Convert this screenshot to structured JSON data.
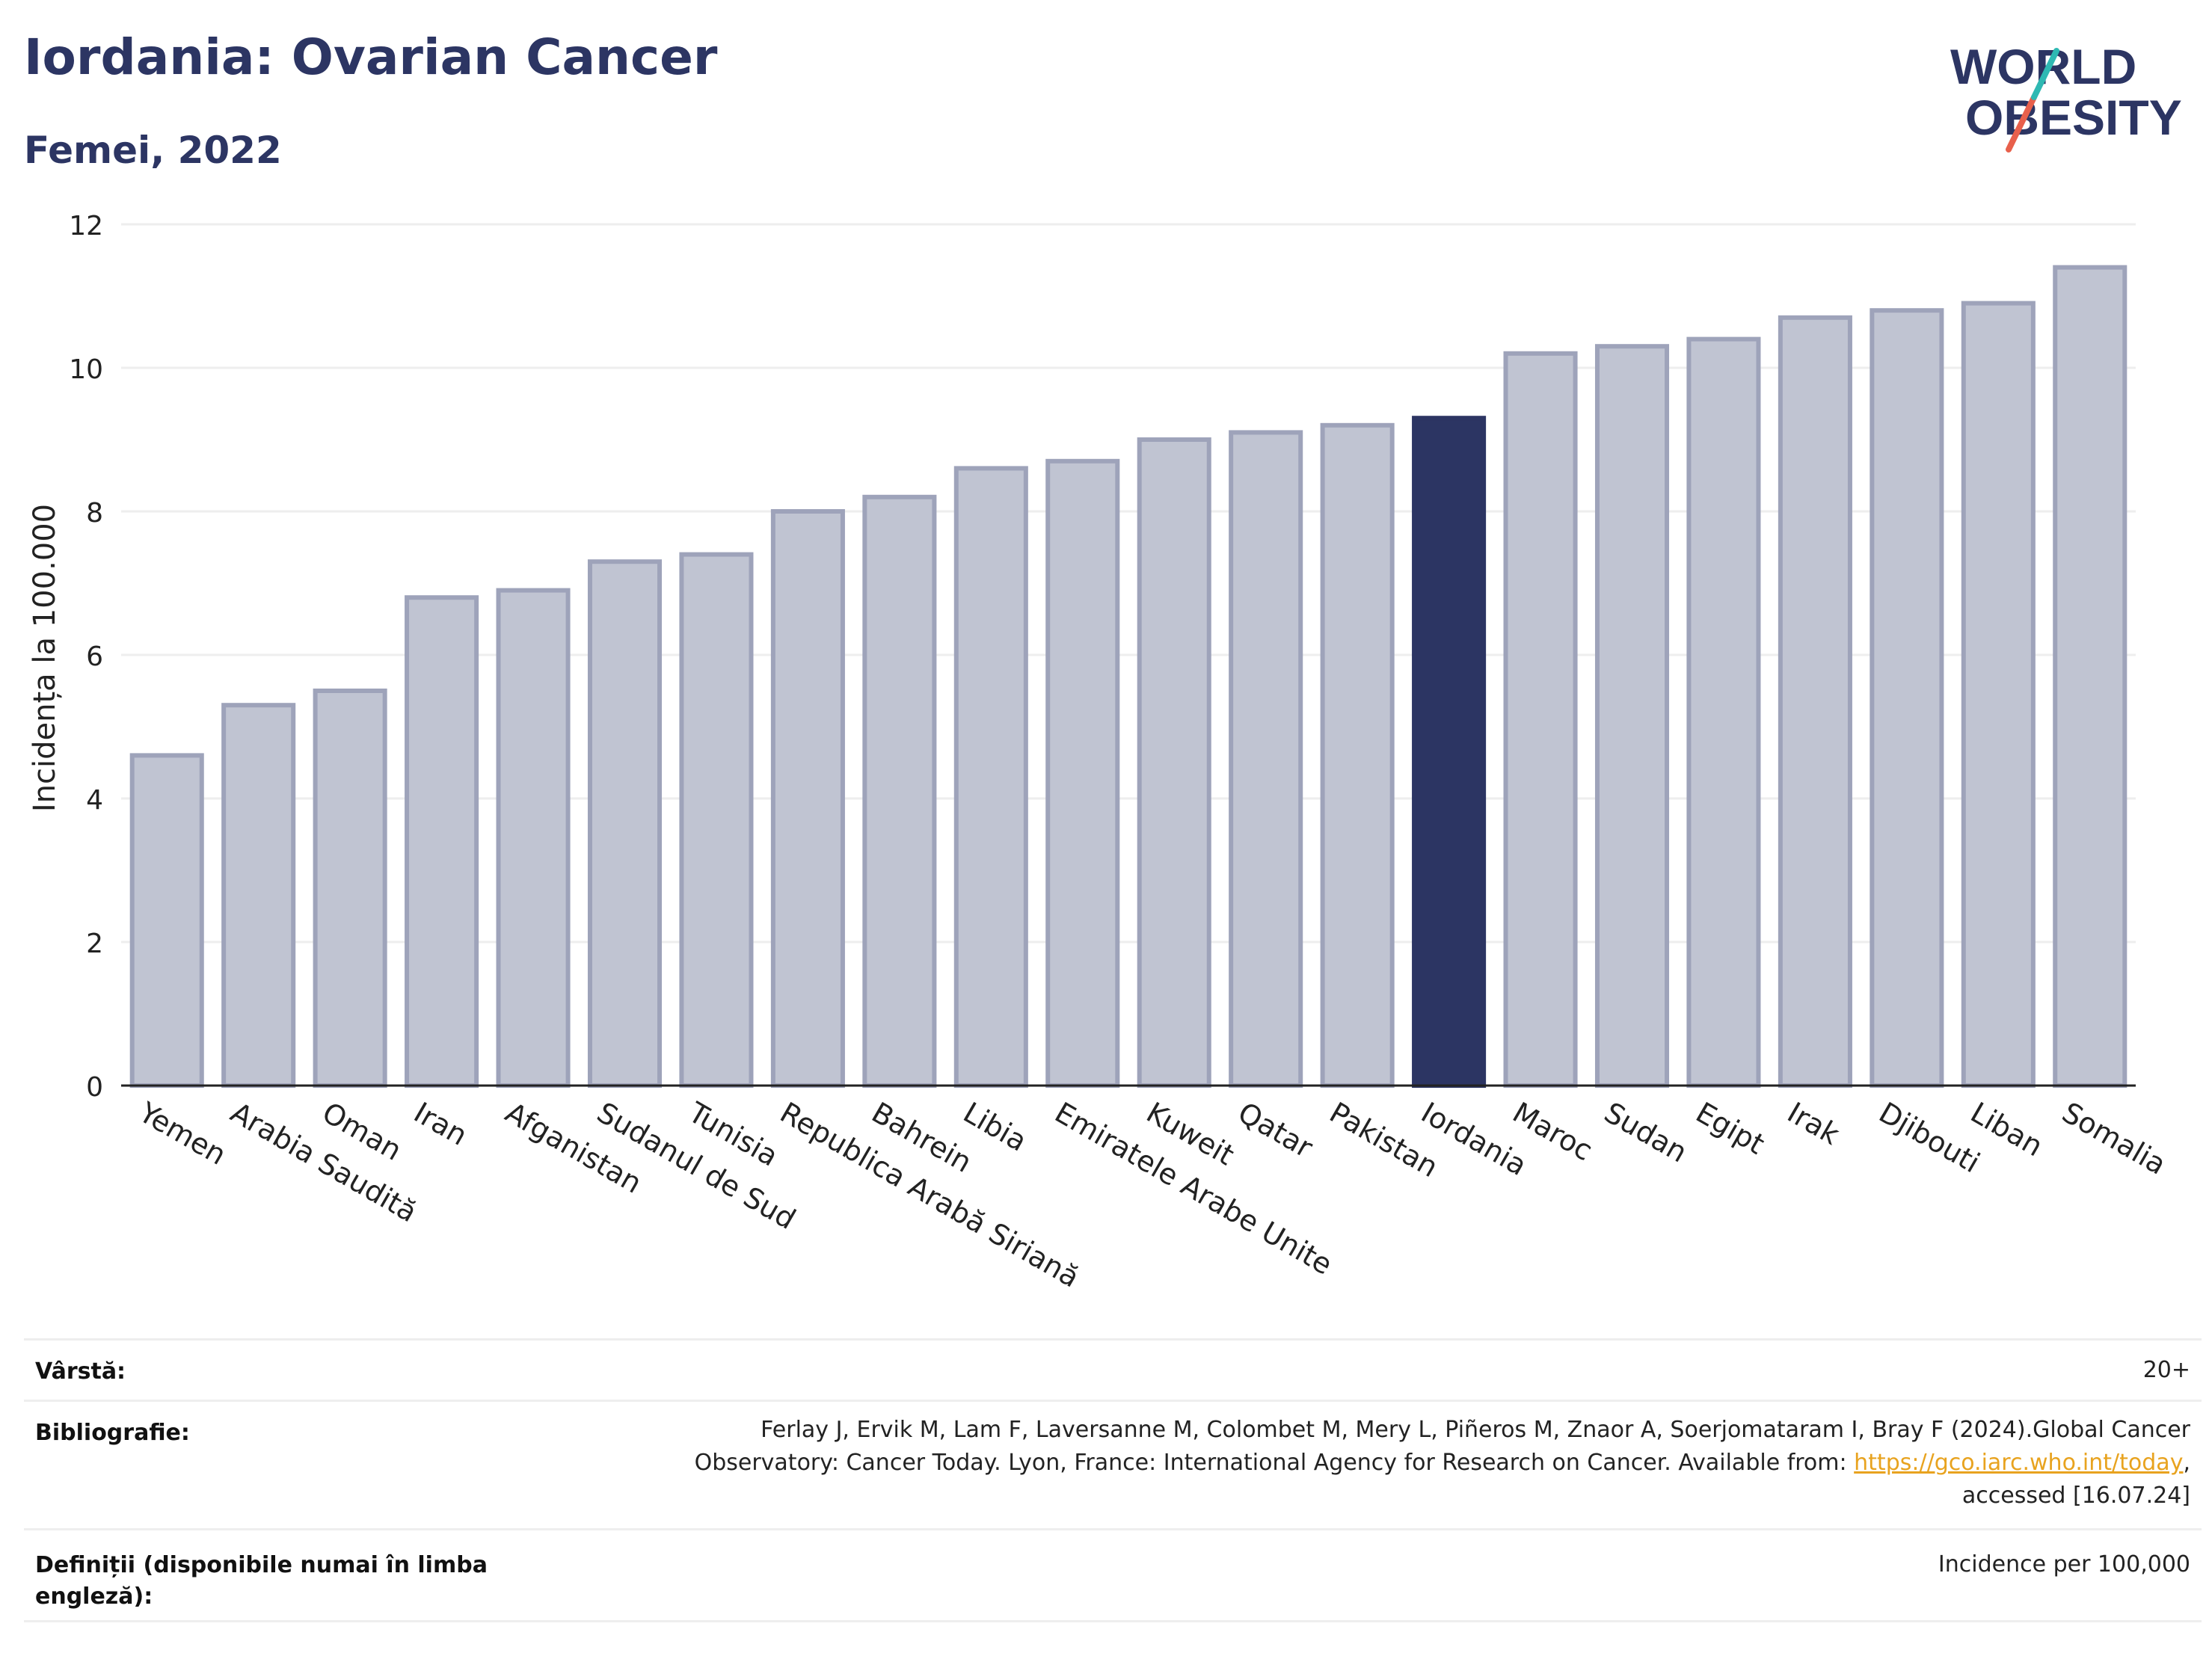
{
  "header": {
    "title": "Iordania: Ovarian Cancer",
    "subtitle": "Femei, 2022",
    "logo_text": "WORLD OBESITY"
  },
  "chart_data": {
    "type": "bar",
    "ylabel": "Incidența la 100.000",
    "xlabel": "",
    "ylim": [
      0,
      12
    ],
    "yticks": [
      0,
      2,
      4,
      6,
      8,
      10,
      12
    ],
    "grid": true,
    "categories": [
      "Yemen",
      "Arabia Saudită",
      "Oman",
      "Iran",
      "Afganistan",
      "Sudanul de Sud",
      "Tunisia",
      "Republica Arabă Siriană",
      "Bahrein",
      "Libia",
      "Emiratele Arabe Unite",
      "Kuweit",
      "Qatar",
      "Pakistan",
      "Iordania",
      "Maroc",
      "Sudan",
      "Egipt",
      "Irak",
      "Djibouti",
      "Liban",
      "Somalia"
    ],
    "values": [
      4.6,
      5.3,
      5.5,
      6.8,
      6.9,
      7.3,
      7.4,
      8.0,
      8.2,
      8.6,
      8.7,
      9.0,
      9.1,
      9.2,
      9.3,
      10.2,
      10.3,
      10.4,
      10.7,
      10.8,
      10.9,
      11.4
    ],
    "highlight": "Iordania",
    "colors": {
      "bar": "#c0c4d2",
      "bar_border": "#9ea3ba",
      "highlight": "#2c3563",
      "axis": "#222222",
      "grid": "#eeeeee"
    }
  },
  "info": {
    "age_label": "Vârstă:",
    "age_value": "20+",
    "bib_label": "Bibliografie:",
    "bib_line1": "Ferlay J, Ervik M, Lam F, Laversanne M, Colombet M, Mery L, Piñeros M, Znaor A, Soerjomataram I, Bray F (2024).Global Cancer",
    "bib_line2_pre": "Observatory: Cancer Today. Lyon, France: International Agency for Research on Cancer. Available from: ",
    "bib_link": "https://gco.iarc.who.int/today",
    "bib_line2_post": ",",
    "bib_line3": "accessed [16.07.24]",
    "def_label": "Definiții (disponibile numai în limba engleză):",
    "def_value": "Incidence per 100,000"
  }
}
